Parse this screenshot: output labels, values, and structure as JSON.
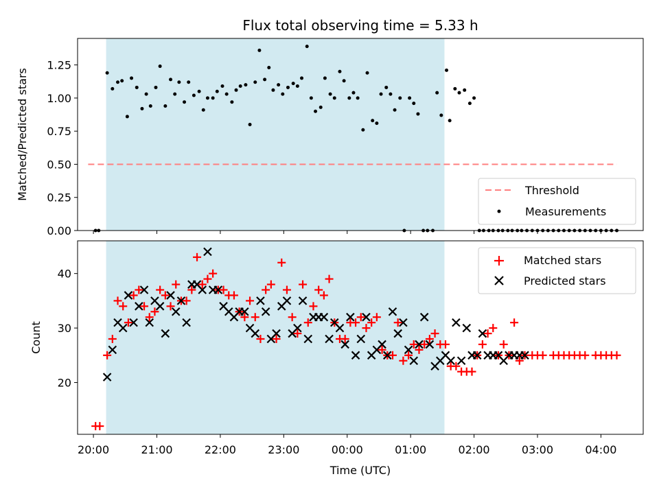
{
  "chart_data": [
    {
      "type": "scatter",
      "title": "Flux total observing time = 5.33 h",
      "xlabel": "",
      "ylabel": "Matched/Predicted stars",
      "ylim": [
        0,
        1.45
      ],
      "yticks": [
        "0.00",
        "0.25",
        "0.50",
        "0.75",
        "1.00",
        "1.25"
      ],
      "x_range": [
        "19:45",
        "04:40"
      ],
      "shaded_interval": [
        "20:12",
        "01:32"
      ],
      "shade_color": "#add8e6",
      "threshold": {
        "name": "Threshold",
        "value": 0.5,
        "x": [
          "19:55",
          "04:15"
        ],
        "color": "#ff7f7f",
        "style": "dashed"
      },
      "legend": {
        "position": "lower right",
        "entries": [
          "Threshold",
          "Measurements"
        ]
      },
      "series": [
        {
          "name": "Measurements",
          "color": "#000000",
          "marker": "dot",
          "x": [
            "20:02",
            "20:05",
            "20:13",
            "20:18",
            "20:23",
            "20:27",
            "20:32",
            "20:36",
            "20:41",
            "20:46",
            "20:50",
            "20:54",
            "20:59",
            "21:03",
            "21:08",
            "21:13",
            "21:17",
            "21:21",
            "21:26",
            "21:30",
            "21:35",
            "21:40",
            "21:44",
            "21:48",
            "21:53",
            "21:57",
            "22:02",
            "22:06",
            "22:11",
            "22:15",
            "22:19",
            "22:24",
            "22:28",
            "22:33",
            "22:37",
            "22:42",
            "22:46",
            "22:50",
            "22:55",
            "22:59",
            "23:04",
            "23:09",
            "23:13",
            "23:17",
            "23:22",
            "23:26",
            "23:30",
            "23:35",
            "23:39",
            "23:44",
            "23:48",
            "23:53",
            "23:57",
            "00:02",
            "00:06",
            "00:10",
            "00:15",
            "00:19",
            "00:24",
            "00:28",
            "00:32",
            "00:37",
            "00:41",
            "00:45",
            "00:50",
            "00:54",
            "00:59",
            "01:03",
            "01:07",
            "01:12",
            "01:16",
            "01:21",
            "01:25",
            "01:29",
            "01:34",
            "01:37",
            "01:42",
            "01:46",
            "01:51",
            "01:56",
            "02:00",
            "02:05",
            "02:09",
            "02:14",
            "02:18",
            "02:23",
            "02:27",
            "02:32",
            "02:36",
            "02:41",
            "02:45",
            "02:50",
            "02:55",
            "03:00",
            "03:05",
            "03:10",
            "03:15",
            "03:20",
            "03:25",
            "03:30",
            "03:35",
            "03:40",
            "03:45",
            "03:50",
            "03:55",
            "04:00",
            "04:05",
            "04:10",
            "04:15"
          ],
          "y": [
            0.0,
            0.0,
            1.19,
            1.07,
            1.12,
            1.13,
            0.86,
            1.15,
            1.08,
            0.92,
            1.03,
            0.94,
            1.08,
            1.24,
            0.94,
            1.14,
            1.03,
            1.12,
            0.97,
            1.12,
            1.02,
            1.05,
            0.91,
            1.0,
            1.0,
            1.05,
            1.09,
            1.03,
            0.97,
            1.06,
            1.09,
            1.1,
            0.8,
            1.12,
            1.36,
            1.14,
            1.23,
            1.06,
            1.1,
            1.03,
            1.08,
            1.11,
            1.09,
            1.15,
            1.39,
            1.0,
            0.9,
            0.93,
            1.15,
            1.03,
            1.0,
            1.2,
            1.13,
            1.0,
            1.04,
            1.0,
            0.76,
            1.19,
            0.83,
            0.81,
            1.03,
            1.08,
            1.03,
            0.91,
            1.0,
            0.0,
            1.0,
            0.96,
            0.88,
            0.0,
            0.0,
            0.0,
            1.04,
            0.87,
            1.21,
            0.83,
            1.07,
            1.04,
            1.06,
            0.96,
            1.0,
            0.0,
            0.0,
            0.0,
            0.0,
            0.0,
            0.0,
            0.0,
            0.0,
            0.0,
            0.0,
            0.0,
            0.0,
            0.0,
            0.0,
            0.0,
            0.0,
            0.0,
            0.0,
            0.0,
            0.0,
            0.0,
            0.0,
            0.0,
            0.0,
            0.0,
            0.0,
            0.0,
            0.0
          ]
        }
      ]
    },
    {
      "type": "scatter",
      "xlabel": "Time (UTC)",
      "ylabel": "Count",
      "ylim": [
        10.5,
        46
      ],
      "yticks": [
        "20",
        "30",
        "40"
      ],
      "xticks": [
        "20:00",
        "21:00",
        "22:00",
        "23:00",
        "00:00",
        "01:00",
        "02:00",
        "03:00",
        "04:00"
      ],
      "x_range": [
        "19:45",
        "04:40"
      ],
      "shaded_interval": [
        "20:12",
        "01:32"
      ],
      "shade_color": "#add8e6",
      "legend": {
        "position": "upper right",
        "entries": [
          "Matched stars",
          "Predicted stars"
        ]
      },
      "series": [
        {
          "name": "Matched stars",
          "color": "#ff0000",
          "marker": "+",
          "x": [
            "20:02",
            "20:06",
            "20:13",
            "20:18",
            "20:23",
            "20:28",
            "20:33",
            "20:38",
            "20:43",
            "20:48",
            "20:53",
            "20:58",
            "21:03",
            "21:08",
            "21:13",
            "21:18",
            "21:23",
            "21:28",
            "21:33",
            "21:38",
            "21:43",
            "21:48",
            "21:53",
            "21:58",
            "22:03",
            "22:08",
            "22:13",
            "22:18",
            "22:23",
            "22:28",
            "22:33",
            "22:38",
            "22:43",
            "22:48",
            "22:53",
            "22:58",
            "23:03",
            "23:08",
            "23:13",
            "23:18",
            "23:23",
            "23:28",
            "23:33",
            "23:38",
            "23:43",
            "23:48",
            "23:53",
            "23:58",
            "00:03",
            "00:08",
            "00:13",
            "00:18",
            "00:23",
            "00:28",
            "00:33",
            "00:38",
            "00:43",
            "00:48",
            "00:53",
            "00:58",
            "01:03",
            "01:08",
            "01:13",
            "01:18",
            "01:23",
            "01:28",
            "01:33",
            "01:38",
            "01:43",
            "01:48",
            "01:53",
            "01:58",
            "02:03",
            "02:08",
            "02:13",
            "02:18",
            "02:23",
            "02:28",
            "02:33",
            "02:38",
            "02:43",
            "02:48",
            "02:55",
            "03:00",
            "03:05",
            "03:15",
            "03:20",
            "03:25",
            "03:30",
            "03:35",
            "03:40",
            "03:45",
            "03:55",
            "04:00",
            "04:05",
            "04:10",
            "04:15"
          ],
          "y": [
            12,
            12,
            25,
            28,
            35,
            34,
            31,
            36,
            37,
            34,
            32,
            33,
            37,
            36,
            34,
            38,
            35,
            35,
            37,
            43,
            38,
            39,
            40,
            37,
            37,
            36,
            36,
            33,
            32,
            35,
            32,
            28,
            37,
            38,
            28,
            42,
            37,
            32,
            29,
            38,
            31,
            34,
            37,
            36,
            39,
            31,
            28,
            28,
            31,
            31,
            32,
            30,
            31,
            32,
            26,
            25,
            25,
            31,
            24,
            25,
            27,
            26,
            27,
            28,
            29,
            27,
            27,
            23,
            23,
            22,
            22,
            22,
            25,
            27,
            29,
            30,
            25,
            27,
            25,
            31,
            24,
            25,
            25,
            25,
            25,
            25,
            25,
            25,
            25,
            25,
            25,
            25,
            25,
            25,
            25,
            25,
            25
          ]
        },
        {
          "name": "Predicted stars",
          "color": "#000000",
          "marker": "x",
          "x": [
            "20:13",
            "20:18",
            "20:23",
            "20:28",
            "20:33",
            "20:38",
            "20:43",
            "20:48",
            "20:53",
            "20:58",
            "21:03",
            "21:08",
            "21:13",
            "21:18",
            "21:23",
            "21:28",
            "21:33",
            "21:38",
            "21:43",
            "21:48",
            "21:53",
            "21:58",
            "22:03",
            "22:08",
            "22:13",
            "22:18",
            "22:23",
            "22:28",
            "22:33",
            "22:38",
            "22:43",
            "22:48",
            "22:53",
            "22:58",
            "23:03",
            "23:08",
            "23:13",
            "23:18",
            "23:23",
            "23:28",
            "23:33",
            "23:38",
            "23:43",
            "23:48",
            "23:53",
            "23:58",
            "00:03",
            "00:08",
            "00:13",
            "00:18",
            "00:23",
            "00:28",
            "00:33",
            "00:38",
            "00:43",
            "00:48",
            "00:53",
            "00:58",
            "01:03",
            "01:08",
            "01:13",
            "01:18",
            "01:23",
            "01:28",
            "01:33",
            "01:38",
            "01:43",
            "01:48",
            "01:53",
            "01:58",
            "02:03",
            "02:08",
            "02:13",
            "02:18",
            "02:23",
            "02:28",
            "02:33",
            "02:38",
            "02:43",
            "02:48"
          ],
          "y": [
            21,
            26,
            31,
            30,
            36,
            31,
            34,
            37,
            31,
            35,
            34,
            29,
            36,
            33,
            35,
            31,
            38,
            38,
            37,
            44,
            37,
            37,
            34,
            33,
            32,
            33,
            33,
            30,
            29,
            35,
            33,
            28,
            29,
            34,
            35,
            29,
            30,
            35,
            28,
            32,
            32,
            32,
            28,
            31,
            30,
            27,
            32,
            25,
            28,
            32,
            25,
            26,
            27,
            25,
            33,
            29,
            31,
            26,
            24,
            27,
            32,
            27,
            23,
            24,
            25,
            24,
            31,
            24,
            30,
            25,
            25,
            29,
            25,
            25,
            25,
            24,
            25,
            25,
            25,
            25
          ]
        }
      ]
    }
  ]
}
